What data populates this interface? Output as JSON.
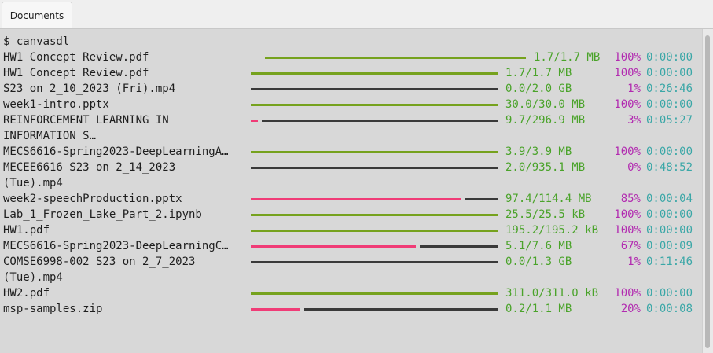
{
  "tab": {
    "label": "Documents"
  },
  "terminal": {
    "prompt_line": "$ canvasdl",
    "colors": {
      "done": "#76a21e",
      "progress": "#f03c77",
      "remaining": "#3a3a3a",
      "size": "#4aa32a",
      "percent": "#b22bb0",
      "time": "#3aa7a7"
    },
    "rows": [
      {
        "name": "HW1 Concept Review.pdf",
        "size": "1.7/1.7 MB",
        "percent": "100%",
        "time": "0:00:00",
        "fraction": 1.0,
        "complete": true
      },
      {
        "name": "HW1 Concept Review.pdf",
        "size": "1.7/1.7 MB",
        "percent": "100%",
        "time": "0:00:00",
        "fraction": 1.0,
        "complete": true
      },
      {
        "name": "S23 on 2_10_2023 (Fri).mp4",
        "size": "0.0/2.0 GB",
        "percent": "1%",
        "time": "0:26:46",
        "fraction": 0.0,
        "complete": false
      },
      {
        "name": "week1-intro.pptx",
        "size": "30.0/30.0 MB",
        "percent": "100%",
        "time": "0:00:00",
        "fraction": 1.0,
        "complete": true
      },
      {
        "name": "REINFORCEMENT LEARNING IN",
        "name2": "INFORMATION S…",
        "size": "9.7/296.9 MB",
        "percent": "3%",
        "time": "0:05:27",
        "fraction": 0.03,
        "complete": false
      },
      {
        "name": "MECS6616-Spring2023-DeepLearningA…",
        "size": "3.9/3.9 MB",
        "percent": "100%",
        "time": "0:00:00",
        "fraction": 1.0,
        "complete": true
      },
      {
        "name": "MECEE6616 S23 on 2_14_2023",
        "name2": "(Tue).mp4",
        "size": "2.0/935.1 MB",
        "percent": "0%",
        "time": "0:48:52",
        "fraction": 0.0,
        "complete": false
      },
      {
        "name": "week2-speechProduction.pptx",
        "size": "97.4/114.4 MB",
        "percent": "85%",
        "time": "0:00:04",
        "fraction": 0.85,
        "complete": false
      },
      {
        "name": "Lab_1_Frozen_Lake_Part_2.ipynb",
        "size": "25.5/25.5 kB",
        "percent": "100%",
        "time": "0:00:00",
        "fraction": 1.0,
        "complete": true
      },
      {
        "name": "HW1.pdf",
        "size": "195.2/195.2 kB",
        "percent": "100%",
        "time": "0:00:00",
        "fraction": 1.0,
        "complete": true
      },
      {
        "name": "MECS6616-Spring2023-DeepLearningC…",
        "size": "5.1/7.6 MB",
        "percent": "67%",
        "time": "0:00:09",
        "fraction": 0.67,
        "complete": false
      },
      {
        "name": "COMSE6998-002 S23 on 2_7_2023",
        "name2": "(Tue).mp4",
        "size": "0.0/1.3 GB",
        "percent": "1%",
        "time": "0:11:46",
        "fraction": 0.0,
        "complete": false
      },
      {
        "name": "HW2.pdf",
        "size": "311.0/311.0 kB",
        "percent": "100%",
        "time": "0:00:00",
        "fraction": 1.0,
        "complete": true
      },
      {
        "name": "msp-samples.zip",
        "size": "0.2/1.1 MB",
        "percent": "20%",
        "time": "0:00:08",
        "fraction": 0.2,
        "complete": false
      }
    ]
  }
}
